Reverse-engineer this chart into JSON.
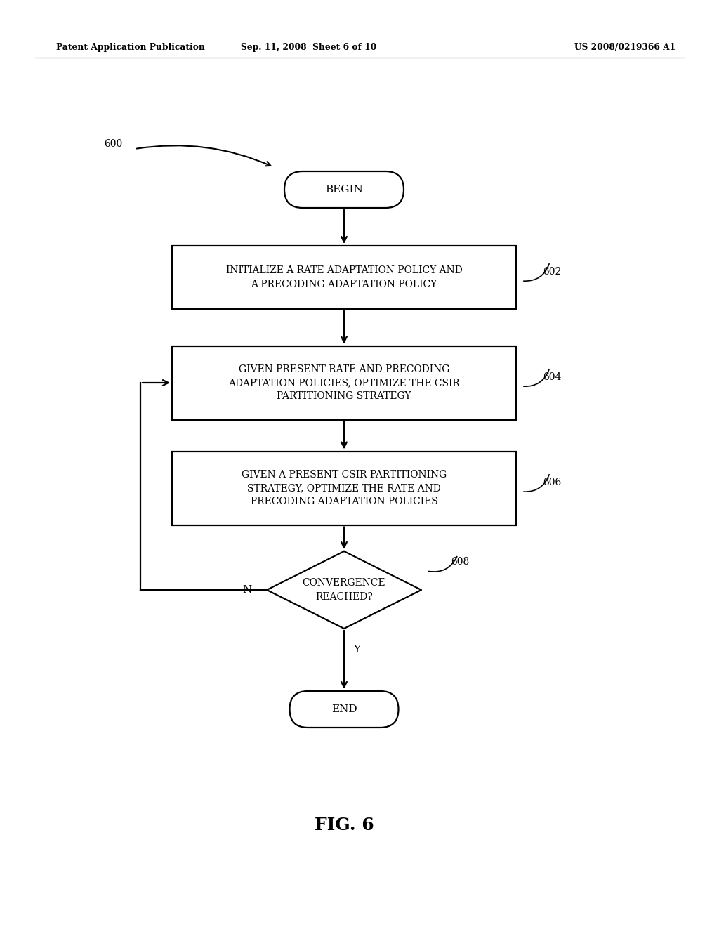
{
  "bg_color": "#ffffff",
  "header_left": "Patent Application Publication",
  "header_mid": "Sep. 11, 2008  Sheet 6 of 10",
  "header_right": "US 2008/0219366 A1",
  "fig_label": "FIG. 6",
  "diagram_label": "600",
  "node_begin_text": "BEGIN",
  "node_end_text": "END",
  "box602_text_l1": "INITIALIZE A RATE ADAPTATION POLICY AND",
  "box602_text_l2": "A PRECODING ADAPTATION POLICY",
  "box604_text_l1": "GIVEN PRESENT RATE AND PRECODING",
  "box604_text_l2": "ADAPTATION POLICIES, OPTIMIZE THE CSIR",
  "box604_text_l3": "PARTITIONING STRATEGY",
  "box606_text_l1": "GIVEN A PRESENT CSIR PARTITIONING",
  "box606_text_l2": "STRATEGY, OPTIMIZE THE RATE AND",
  "box606_text_l3": "PRECODING ADAPTATION POLICIES",
  "diamond_text_l1": "CONVERGENCE",
  "diamond_text_l2": "REACHED?",
  "label_602": "602",
  "label_604": "604",
  "label_606": "606",
  "label_608": "608",
  "label_N": "N",
  "label_Y": "Y",
  "lw": 1.6
}
